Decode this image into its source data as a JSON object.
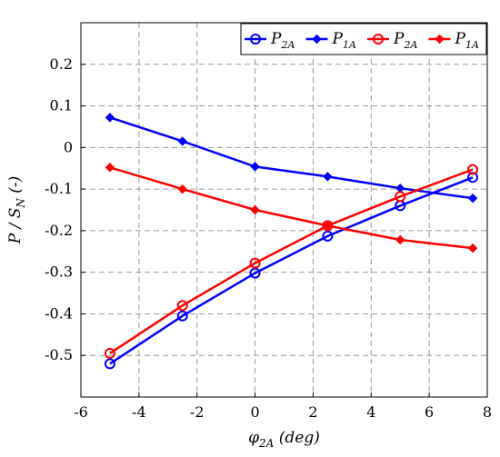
{
  "chart_data": {
    "type": "line",
    "xlabel": {
      "main": "φ",
      "sub": "2A",
      "unit": " (deg)"
    },
    "ylabel": {
      "main": "P / S",
      "sub": "N",
      "unit": " (-)"
    },
    "xlim": [
      -6,
      8
    ],
    "ylim": [
      -0.6,
      0.3
    ],
    "xticks": [
      "-6",
      "-4",
      "-2",
      "0",
      "2",
      "4",
      "6",
      "8"
    ],
    "yticks": [
      "-0.5",
      "-0.4",
      "-0.3",
      "-0.2",
      "-0.1",
      "0",
      "0.1",
      "0.2"
    ],
    "grid": true,
    "legend_position": "top-right",
    "series": [
      {
        "name": "P",
        "sub": "2A",
        "color": "#0000ff",
        "marker": "circle",
        "x": [
          -5,
          -2.5,
          0,
          2.5,
          5,
          7.5
        ],
        "y": [
          -0.52,
          -0.405,
          -0.302,
          -0.213,
          -0.14,
          -0.072
        ]
      },
      {
        "name": "P",
        "sub": "1A",
        "color": "#0000ff",
        "marker": "diamond",
        "x": [
          -5,
          -2.5,
          0,
          2.5,
          5,
          7.5
        ],
        "y": [
          0.072,
          0.015,
          -0.046,
          -0.07,
          -0.098,
          -0.122
        ]
      },
      {
        "name": "P",
        "sub": "2A",
        "color": "#ff0000",
        "marker": "circle",
        "x": [
          -5,
          -2.5,
          0,
          2.5,
          5,
          7.5
        ],
        "y": [
          -0.495,
          -0.38,
          -0.278,
          -0.188,
          -0.118,
          -0.053
        ]
      },
      {
        "name": "P",
        "sub": "1A",
        "color": "#ff0000",
        "marker": "diamond",
        "x": [
          -5,
          -2.5,
          0,
          2.5,
          5,
          7.5
        ],
        "y": [
          -0.048,
          -0.1,
          -0.15,
          -0.188,
          -0.222,
          -0.242
        ]
      }
    ]
  }
}
